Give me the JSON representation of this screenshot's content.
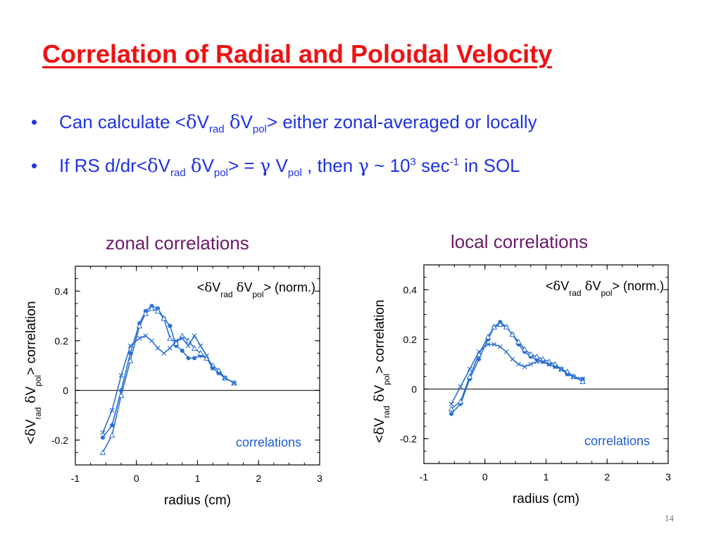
{
  "slide": {
    "title": "Correlation of Radial and Poloidal Velocity",
    "bullets": [
      {
        "symbol": "•",
        "p1": "Can calculate <",
        "d1": "δ",
        "v1": "V",
        "sub1": "rad",
        "d2": "δ",
        "v2": "V",
        "sub2": "pol",
        "p2": "> either zonal-averaged or locally"
      },
      {
        "symbol": "•",
        "p1": "If RS d/dr<",
        "d1": "δ",
        "v1": "V",
        "sub1": "rad",
        "d2": "δ",
        "v2": "V",
        "sub2": "pol",
        "p2": "> = ",
        "g1": "γ",
        "v3": " V",
        "sub3": "pol",
        "p3": " , then ",
        "g2": "γ",
        "p4": " ~ 10",
        "sup1": "3",
        "p5": " sec",
        "sup2": "-1",
        "p6": " in SOL"
      }
    ],
    "page_number": "14"
  },
  "panels": [
    {
      "heading": "zonal correlations"
    },
    {
      "heading": "local correlations"
    }
  ],
  "colors": {
    "title": "#ee1111",
    "bullet_text": "#1f33e0",
    "panel_heading": "#6a1a6a",
    "series": "#2a6fd1",
    "axis": "#000000"
  },
  "chart_data": [
    {
      "type": "line",
      "title": "",
      "xlabel": "radius (cm)",
      "ylabel_parts": {
        "lt": "<",
        "d1": "δ",
        "v1": "V",
        "sub1": "rad",
        "d2": "δ",
        "v2": "V",
        "sub2": "pol",
        "rest": "> correlation"
      },
      "inset_label": {
        "lt": "<",
        "d1": "δ",
        "v1": "V",
        "sub1": "rad",
        "d2": "δ",
        "v2": "V",
        "sub2": "pol",
        "rest": "> (norm.)"
      },
      "annotation": "correlations",
      "xlim": [
        -1,
        3
      ],
      "ylim": [
        -0.3,
        0.5
      ],
      "xticks": [
        -1,
        0,
        1,
        2,
        3
      ],
      "xtick_labels": [
        "-1",
        "0",
        "1",
        "2",
        "3"
      ],
      "yticks": [
        -0.2,
        0,
        0.2,
        0.4
      ],
      "ytick_labels": [
        "-0.2",
        "0",
        "0.2",
        "0.4"
      ],
      "zero_line": true,
      "series": [
        {
          "marker": "dot",
          "x": [
            -0.55,
            -0.4,
            -0.25,
            -0.1,
            0.05,
            0.15,
            0.25,
            0.35,
            0.45,
            0.55,
            0.65,
            0.75,
            0.85,
            0.95,
            1.05,
            1.15,
            1.25,
            1.35,
            1.45,
            1.6
          ],
          "y": [
            -0.19,
            -0.14,
            0.0,
            0.15,
            0.27,
            0.32,
            0.34,
            0.33,
            0.29,
            0.26,
            0.18,
            0.16,
            0.13,
            0.13,
            0.14,
            0.13,
            0.09,
            0.07,
            0.05,
            0.03
          ]
        },
        {
          "marker": "triangle",
          "x": [
            -0.55,
            -0.4,
            -0.25,
            -0.1,
            0.05,
            0.15,
            0.25,
            0.35,
            0.45,
            0.55,
            0.65,
            0.75,
            0.85,
            0.95,
            1.05,
            1.15,
            1.25,
            1.35,
            1.45,
            1.6
          ],
          "y": [
            -0.25,
            -0.18,
            -0.02,
            0.12,
            0.26,
            0.31,
            0.33,
            0.32,
            0.29,
            0.21,
            0.19,
            0.22,
            0.2,
            0.17,
            0.15,
            0.13,
            0.1,
            0.08,
            0.05,
            0.03
          ]
        },
        {
          "marker": "x",
          "x": [
            -0.55,
            -0.4,
            -0.25,
            -0.1,
            0.05,
            0.15,
            0.25,
            0.35,
            0.45,
            0.55,
            0.65,
            0.75,
            0.85,
            0.95,
            1.05,
            1.15,
            1.25,
            1.35,
            1.45,
            1.6
          ],
          "y": [
            -0.17,
            -0.08,
            0.06,
            0.18,
            0.21,
            0.22,
            0.2,
            0.17,
            0.15,
            0.17,
            0.2,
            0.21,
            0.18,
            0.22,
            0.18,
            0.14,
            0.09,
            0.07,
            0.05,
            0.03
          ]
        }
      ]
    },
    {
      "type": "line",
      "title": "",
      "xlabel": "radius (cm)",
      "ylabel_parts": {
        "lt": "<",
        "d1": "δ",
        "v1": "V",
        "sub1": "rad",
        "d2": "δ",
        "v2": "V",
        "sub2": "pol",
        "rest": "> correlation"
      },
      "inset_label": {
        "lt": "<",
        "d1": "δ",
        "v1": "V",
        "sub1": "rad",
        "d2": "δ",
        "v2": "V",
        "sub2": "pol",
        "rest": "> (norm.)"
      },
      "annotation": "correlations",
      "xlim": [
        -1,
        3
      ],
      "ylim": [
        -0.3,
        0.5
      ],
      "xticks": [
        -1,
        0,
        1,
        2,
        3
      ],
      "xtick_labels": [
        "-1",
        "0",
        "1",
        "2",
        "3"
      ],
      "yticks": [
        -0.2,
        0,
        0.2,
        0.4
      ],
      "ytick_labels": [
        "-0.2",
        "0",
        "0.2",
        "0.4"
      ],
      "zero_line": true,
      "series": [
        {
          "marker": "dot",
          "x": [
            -0.55,
            -0.4,
            -0.25,
            -0.1,
            0.05,
            0.15,
            0.25,
            0.35,
            0.45,
            0.55,
            0.65,
            0.75,
            0.85,
            0.95,
            1.05,
            1.15,
            1.25,
            1.35,
            1.45,
            1.6
          ],
          "y": [
            -0.1,
            -0.06,
            0.04,
            0.12,
            0.2,
            0.25,
            0.27,
            0.25,
            0.22,
            0.18,
            0.15,
            0.13,
            0.12,
            0.11,
            0.1,
            0.09,
            0.08,
            0.06,
            0.05,
            0.04
          ]
        },
        {
          "marker": "triangle",
          "x": [
            -0.55,
            -0.4,
            -0.25,
            -0.1,
            0.05,
            0.15,
            0.25,
            0.35,
            0.45,
            0.55,
            0.65,
            0.75,
            0.85,
            0.95,
            1.05,
            1.15,
            1.25,
            1.35,
            1.45,
            1.6
          ],
          "y": [
            -0.08,
            -0.05,
            0.05,
            0.14,
            0.21,
            0.25,
            0.26,
            0.25,
            0.22,
            0.19,
            0.16,
            0.14,
            0.13,
            0.12,
            0.11,
            0.1,
            0.08,
            0.07,
            0.05,
            0.03
          ]
        },
        {
          "marker": "x",
          "x": [
            -0.55,
            -0.4,
            -0.25,
            -0.1,
            0.05,
            0.15,
            0.25,
            0.35,
            0.45,
            0.55,
            0.65,
            0.75,
            0.85,
            0.95,
            1.05,
            1.15,
            1.25,
            1.35,
            1.45,
            1.6
          ],
          "y": [
            -0.06,
            0.01,
            0.08,
            0.15,
            0.18,
            0.18,
            0.17,
            0.15,
            0.12,
            0.1,
            0.09,
            0.1,
            0.11,
            0.11,
            0.1,
            0.09,
            0.08,
            0.06,
            0.05,
            0.04
          ]
        }
      ]
    }
  ]
}
